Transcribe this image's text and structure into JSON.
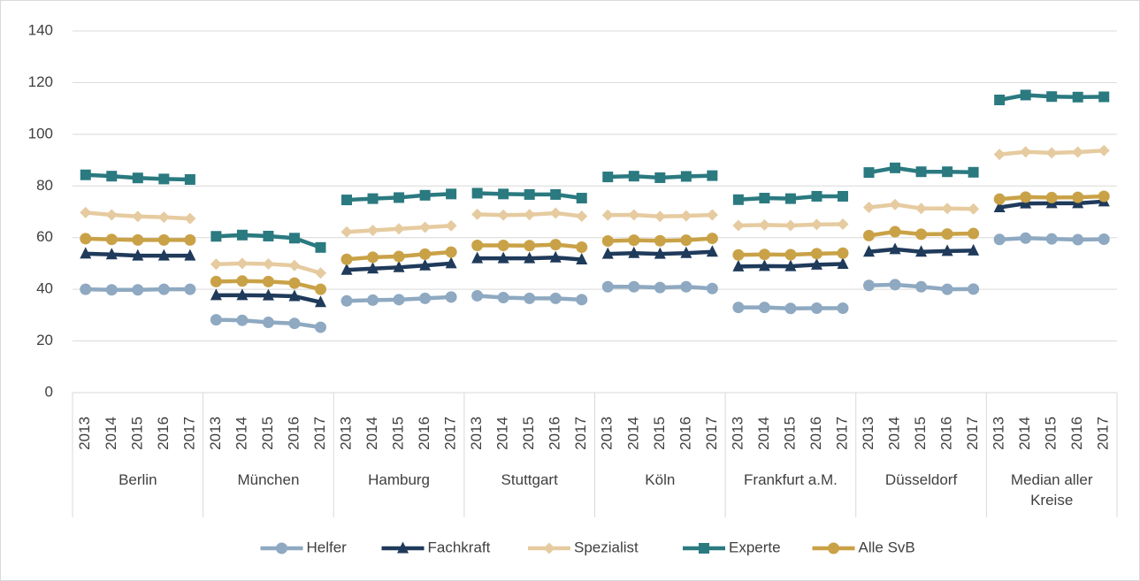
{
  "chart_data": {
    "type": "line",
    "groups": [
      "Berlin",
      "München",
      "Hamburg",
      "Stuttgart",
      "Köln",
      "Frankfurt a.M.",
      "Düsseldorf",
      "Median aller Kreise"
    ],
    "categories": [
      [
        "2013",
        "2014",
        "2015",
        "2016",
        "2017"
      ],
      [
        "2013",
        "2014",
        "2015",
        "2016",
        "2017"
      ],
      [
        "2013",
        "2014",
        "2015",
        "2016",
        "2017"
      ],
      [
        "2013",
        "2014",
        "2015",
        "2016",
        "2017"
      ],
      [
        "2013",
        "2014",
        "2015",
        "2016",
        "2017"
      ],
      [
        "2013",
        "2014",
        "2015",
        "2016",
        "2017"
      ],
      [
        "2013",
        "2014",
        "2015",
        "2016",
        "2017"
      ],
      [
        "2013",
        "2014",
        "2015",
        "2016",
        "2017"
      ]
    ],
    "series": [
      {
        "name": "Helfer",
        "color": "#8ea9c1",
        "marker": "circle",
        "values": [
          [
            40,
            39.8,
            39.8,
            40,
            40
          ],
          [
            28.2,
            28,
            27.2,
            26.8,
            25.3
          ],
          [
            35.5,
            35.8,
            36,
            36.5,
            37
          ],
          [
            37.5,
            36.8,
            36.5,
            36.5,
            36
          ],
          [
            41,
            41,
            40.7,
            41,
            40.3
          ],
          [
            33,
            33,
            32.6,
            32.7,
            32.7
          ],
          [
            41.5,
            41.8,
            41,
            40,
            40.1
          ],
          [
            59.3,
            59.8,
            59.5,
            59.2,
            59.4
          ]
        ]
      },
      {
        "name": "Fachkraft",
        "color": "#1f3a5a",
        "marker": "triangle",
        "values": [
          [
            53.8,
            53.5,
            53,
            53,
            53
          ],
          [
            37.7,
            37.7,
            37.6,
            37.3,
            35
          ],
          [
            47.5,
            48,
            48.5,
            49.2,
            50
          ],
          [
            52,
            52,
            52,
            52.3,
            51.5
          ],
          [
            53.7,
            54,
            53.7,
            54,
            54.5
          ],
          [
            48.8,
            49,
            48.9,
            49.5,
            49.8
          ],
          [
            54.5,
            55.5,
            54.5,
            54.8,
            55
          ],
          [
            71.7,
            73.2,
            73.3,
            73.3,
            74
          ]
        ]
      },
      {
        "name": "Spezialist",
        "color": "#e6cba0",
        "marker": "diamond",
        "values": [
          [
            69.7,
            68.8,
            68.2,
            67.9,
            67.4
          ],
          [
            49.7,
            50,
            49.8,
            49.2,
            46.3
          ],
          [
            62.2,
            62.8,
            63.4,
            64,
            64.6
          ],
          [
            69,
            68.7,
            68.9,
            69.5,
            68.3
          ],
          [
            68.7,
            68.8,
            68.2,
            68.4,
            68.8
          ],
          [
            64.7,
            64.9,
            64.7,
            65.1,
            65.2
          ],
          [
            71.7,
            72.8,
            71.3,
            71.3,
            71.1
          ],
          [
            92.2,
            93.2,
            92.8,
            93.1,
            93.7
          ]
        ]
      },
      {
        "name": "Experte",
        "color": "#2a7a80",
        "marker": "square",
        "values": [
          [
            84.3,
            83.8,
            83.1,
            82.7,
            82.5
          ],
          [
            60.5,
            61,
            60.6,
            59.8,
            56.2
          ],
          [
            74.6,
            75.1,
            75.5,
            76.4,
            76.9
          ],
          [
            77.2,
            76.9,
            76.7,
            76.7,
            75.3
          ],
          [
            83.5,
            83.8,
            83.2,
            83.7,
            84
          ],
          [
            74.7,
            75.3,
            75.1,
            76,
            76
          ],
          [
            85.2,
            87,
            85.5,
            85.5,
            85.3
          ],
          [
            113.3,
            115.2,
            114.6,
            114.4,
            114.5
          ]
        ]
      },
      {
        "name": "Alle SvB",
        "color": "#c9a247",
        "marker": "circle",
        "values": [
          [
            59.6,
            59.3,
            59.1,
            59.1,
            59.1
          ],
          [
            43,
            43.2,
            43,
            42.4,
            40
          ],
          [
            51.6,
            52.4,
            52.7,
            53.6,
            54.4
          ],
          [
            57,
            57,
            56.9,
            57.3,
            56.3
          ],
          [
            58.7,
            59,
            58.8,
            59,
            59.7
          ],
          [
            53.3,
            53.5,
            53.4,
            53.8,
            54
          ],
          [
            60.8,
            62.3,
            61.3,
            61.4,
            61.6
          ],
          [
            74.9,
            75.7,
            75.5,
            75.6,
            76
          ]
        ]
      }
    ],
    "ylim": [
      0,
      140
    ],
    "yticks": [
      0,
      20,
      40,
      60,
      80,
      100,
      120,
      140
    ],
    "grid": true,
    "legend": "bottom"
  }
}
